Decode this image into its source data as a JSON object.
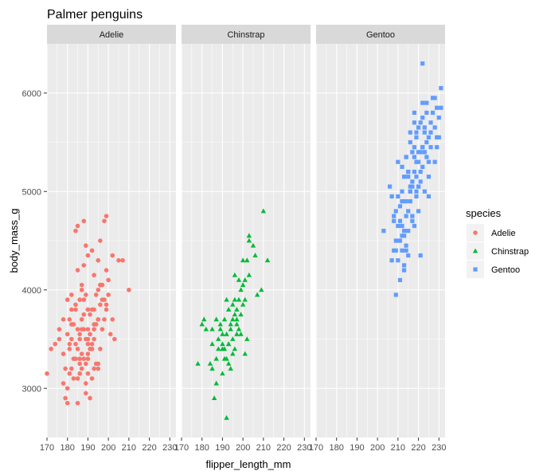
{
  "chart_data": {
    "type": "scatter",
    "title": "Palmer penguins",
    "xlabel": "flipper_length_mm",
    "ylabel": "body_mass_g",
    "xlim": [
      170,
      233
    ],
    "ylim": [
      2500,
      6500
    ],
    "xticks": [
      170,
      180,
      190,
      200,
      210,
      220,
      230
    ],
    "yticks": [
      3000,
      4000,
      5000,
      6000
    ],
    "facet_by": "species",
    "grid": true,
    "legend": {
      "title": "species",
      "position": "right"
    },
    "series": [
      {
        "name": "Adelie",
        "color": "#F8766D",
        "shape": "circle",
        "x": [
          170,
          172,
          174,
          176,
          178,
          178,
          179,
          180,
          180,
          180,
          181,
          181,
          182,
          182,
          183,
          183,
          184,
          184,
          184,
          185,
          185,
          185,
          186,
          186,
          186,
          187,
          187,
          187,
          187,
          188,
          188,
          188,
          189,
          189,
          189,
          189,
          190,
          190,
          190,
          190,
          190,
          191,
          191,
          191,
          192,
          192,
          192,
          193,
          193,
          193,
          194,
          194,
          195,
          195,
          195,
          196,
          196,
          196,
          197,
          197,
          198,
          198,
          199,
          199,
          200,
          201,
          202,
          203,
          205,
          207,
          210,
          185,
          181,
          188,
          191,
          186,
          193,
          197,
          190,
          184,
          187,
          182,
          195,
          189,
          192,
          178,
          180,
          183,
          186,
          190,
          193,
          196,
          199,
          185,
          188,
          191,
          194,
          184,
          187,
          190,
          195,
          198,
          181,
          176,
          179,
          182,
          200,
          202,
          188,
          192,
          196,
          186,
          190,
          193,
          189,
          185,
          182,
          199,
          195
        ],
        "y": [
          3150,
          3400,
          3450,
          3600,
          3350,
          3050,
          3200,
          2850,
          3550,
          3900,
          3400,
          3700,
          3200,
          3950,
          3100,
          3650,
          3450,
          3800,
          3300,
          3400,
          2850,
          4650,
          3500,
          3150,
          3900,
          3350,
          3700,
          4050,
          3200,
          3300,
          4250,
          3600,
          3500,
          3950,
          3050,
          4450,
          3300,
          3600,
          3800,
          3450,
          3150,
          3750,
          2900,
          3550,
          3100,
          3800,
          4400,
          3500,
          3200,
          4150,
          3650,
          3950,
          3700,
          4000,
          3250,
          4500,
          3850,
          3400,
          4050,
          3600,
          4700,
          3900,
          3800,
          4200,
          4100,
          3550,
          4350,
          3500,
          4300,
          4300,
          4000,
          3600,
          3150,
          3750,
          3400,
          3300,
          3650,
          3900,
          3500,
          4600,
          4000,
          3800,
          4300,
          3250,
          3450,
          3700,
          3000,
          3300,
          3550,
          4350,
          3800,
          4050,
          4750,
          4200,
          3900,
          3550,
          3250,
          3850,
          3600,
          3350,
          3200,
          3700,
          3450,
          3500,
          2900,
          3650,
          3950,
          3700,
          4700,
          3400,
          4050,
          3250,
          3800,
          3600,
          2950,
          3100,
          3500,
          3850,
          3700
        ]
      },
      {
        "name": "Chinstrap",
        "color": "#00BA38",
        "shape": "triangle",
        "x": [
          178,
          180,
          181,
          182,
          184,
          185,
          185,
          187,
          187,
          188,
          189,
          190,
          190,
          190,
          191,
          191,
          192,
          192,
          192,
          193,
          193,
          193,
          194,
          194,
          195,
          195,
          195,
          196,
          196,
          196,
          197,
          197,
          197,
          198,
          198,
          199,
          199,
          200,
          200,
          201,
          201,
          202,
          203,
          203,
          205,
          206,
          207,
          209,
          210,
          212,
          185,
          187,
          189,
          191,
          193,
          195,
          197,
          199,
          201,
          186,
          188,
          194,
          196,
          198,
          200,
          202,
          190,
          192,
          203
        ],
        "y": [
          3250,
          3650,
          3700,
          3600,
          3250,
          3600,
          3450,
          3300,
          3700,
          3400,
          3650,
          3450,
          3150,
          3550,
          3400,
          3700,
          2700,
          3300,
          3550,
          3800,
          3450,
          3250,
          3600,
          3200,
          3500,
          3850,
          3350,
          3750,
          3400,
          3900,
          3550,
          3700,
          3650,
          3600,
          3900,
          4000,
          3750,
          3850,
          4050,
          4100,
          3900,
          4300,
          4150,
          4550,
          4450,
          4350,
          3950,
          4000,
          4800,
          4300,
          3200,
          3050,
          3600,
          3300,
          3450,
          3700,
          3800,
          3550,
          3350,
          2900,
          3500,
          3650,
          4150,
          4100,
          4300,
          3500,
          3400,
          3900,
          4500
        ]
      },
      {
        "name": "Gentoo",
        "color": "#619CFF",
        "shape": "square",
        "x": [
          203,
          206,
          207,
          208,
          208,
          209,
          209,
          210,
          210,
          210,
          211,
          211,
          212,
          212,
          212,
          213,
          213,
          214,
          214,
          214,
          215,
          215,
          215,
          216,
          216,
          216,
          217,
          217,
          217,
          218,
          218,
          218,
          219,
          219,
          219,
          220,
          220,
          220,
          221,
          221,
          221,
          222,
          222,
          222,
          223,
          223,
          224,
          224,
          225,
          225,
          226,
          226,
          227,
          228,
          228,
          229,
          229,
          230,
          230,
          231,
          208,
          210,
          212,
          214,
          216,
          218,
          220,
          222,
          224,
          226,
          209,
          211,
          213,
          215,
          217,
          219,
          221,
          223,
          225,
          227,
          212,
          214,
          216,
          218,
          220,
          222,
          207,
          209,
          211,
          213,
          215,
          217,
          219,
          221,
          223,
          225,
          229,
          222,
          214,
          231,
          216,
          213,
          210,
          228,
          220,
          215,
          218,
          212,
          224,
          219
        ],
        "y": [
          4600,
          5050,
          4950,
          4400,
          4700,
          4800,
          3950,
          4300,
          5300,
          4650,
          4500,
          4850,
          4400,
          5000,
          4550,
          5150,
          4200,
          4750,
          5350,
          4900,
          5200,
          4600,
          4350,
          5500,
          4900,
          5600,
          5050,
          5400,
          4700,
          5200,
          4650,
          5800,
          5150,
          4950,
          5550,
          5300,
          5650,
          4800,
          5400,
          5700,
          5100,
          5900,
          5450,
          5250,
          5600,
          5000,
          5800,
          5350,
          5550,
          5150,
          5450,
          5700,
          5950,
          5650,
          5300,
          5550,
          5850,
          5750,
          5550,
          6050,
          4750,
          4950,
          5250,
          5350,
          5050,
          5450,
          5050,
          5750,
          5500,
          5600,
          4500,
          4700,
          4600,
          4800,
          5100,
          5000,
          5200,
          5400,
          5300,
          5800,
          4650,
          4450,
          5000,
          5350,
          5050,
          5450,
          4300,
          4400,
          4100,
          4550,
          5200,
          4750,
          5300,
          4350,
          5650,
          4950,
          5450,
          6300,
          4400,
          5850,
          5000,
          4250,
          4500,
          5950,
          5400,
          5150,
          5700,
          4900,
          5900,
          5600
        ]
      }
    ]
  }
}
